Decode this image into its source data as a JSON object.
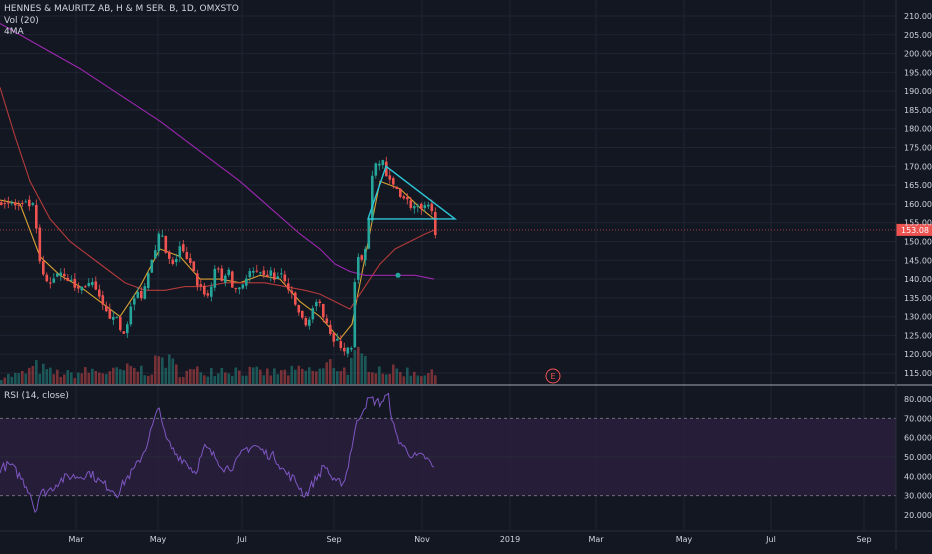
{
  "header": {
    "symbol_line": "HENNES & MAURITZ AB, H & M SER. B, 1D, OMXSTO",
    "vol_label": "Vol (20)",
    "ma_label": "4MA"
  },
  "rsi_label": "RSI (14, close)",
  "price_badge": "153.08",
  "earnings_marker": "E",
  "colors": {
    "background": "#131722",
    "grid": "#1f2433",
    "up": "#26a69a",
    "down": "#ef5350",
    "ma_short": "#d8a234",
    "ma_mid": "#b33a3a",
    "ma_long": "#9c27b0",
    "pattern": "#2ec6d8",
    "rsi_line": "#7e57c2",
    "rsi_band": "#2a1f3d",
    "badge": "#ef5350"
  },
  "chart_data": [
    {
      "type": "candlestick",
      "title": "HENNES & MAURITZ AB, H & M SER. B, 1D, OMXSTO",
      "y_ticks": [
        "115.00",
        "120.00",
        "125.00",
        "130.00",
        "135.00",
        "140.00",
        "145.00",
        "150.00",
        "155.00",
        "160.00",
        "165.00",
        "170.00",
        "175.00",
        "180.00",
        "185.00",
        "190.00",
        "195.00",
        "200.00",
        "205.00",
        "210.00"
      ],
      "ylim": [
        112,
        212
      ],
      "last_price": 153.08,
      "x_ticks": [
        "Mar",
        "May",
        "Jul",
        "Sep",
        "Nov",
        "2019",
        "Mar",
        "May",
        "Jul",
        "Sep"
      ],
      "price_path": [
        [
          0,
          161
        ],
        [
          10,
          160
        ],
        [
          20,
          159
        ],
        [
          30,
          160
        ],
        [
          33,
          158
        ],
        [
          36,
          150
        ],
        [
          40,
          141
        ],
        [
          48,
          138
        ],
        [
          55,
          142
        ],
        [
          62,
          142
        ],
        [
          70,
          139
        ],
        [
          78,
          137
        ],
        [
          85,
          139
        ],
        [
          92,
          138
        ],
        [
          100,
          133
        ],
        [
          106,
          130
        ],
        [
          112,
          131
        ],
        [
          118,
          127
        ],
        [
          122,
          125
        ],
        [
          128,
          131
        ],
        [
          135,
          136
        ],
        [
          142,
          136
        ],
        [
          148,
          144
        ],
        [
          152,
          147
        ],
        [
          156,
          151
        ],
        [
          160,
          152
        ],
        [
          165,
          146
        ],
        [
          172,
          143
        ],
        [
          178,
          149
        ],
        [
          185,
          145
        ],
        [
          190,
          143
        ],
        [
          196,
          139
        ],
        [
          202,
          137
        ],
        [
          208,
          135
        ],
        [
          214,
          144
        ],
        [
          220,
          139
        ],
        [
          226,
          143
        ],
        [
          232,
          137
        ],
        [
          238,
          138
        ],
        [
          244,
          140
        ],
        [
          250,
          142
        ],
        [
          256,
          141
        ],
        [
          262,
          140
        ],
        [
          268,
          142
        ],
        [
          274,
          140
        ],
        [
          280,
          141
        ],
        [
          286,
          138
        ],
        [
          292,
          134
        ],
        [
          298,
          131
        ],
        [
          304,
          127
        ],
        [
          310,
          132
        ],
        [
          316,
          133
        ],
        [
          320,
          132
        ],
        [
          326,
          129
        ],
        [
          332,
          123
        ],
        [
          338,
          123
        ],
        [
          344,
          121
        ],
        [
          350,
          121
        ],
        [
          354,
          141
        ],
        [
          358,
          146
        ],
        [
          362,
          146
        ],
        [
          366,
          149
        ],
        [
          370,
          168
        ],
        [
          376,
          170
        ],
        [
          382,
          172
        ],
        [
          386,
          166
        ],
        [
          390,
          165
        ],
        [
          396,
          164
        ],
        [
          402,
          162
        ],
        [
          408,
          160
        ],
        [
          414,
          159
        ],
        [
          420,
          158
        ],
        [
          426,
          159
        ],
        [
          430,
          158
        ],
        [
          434,
          153
        ]
      ],
      "volume_path": [
        [
          0,
          8
        ],
        [
          20,
          10
        ],
        [
          35,
          18
        ],
        [
          50,
          12
        ],
        [
          70,
          10
        ],
        [
          90,
          14
        ],
        [
          110,
          12
        ],
        [
          130,
          16
        ],
        [
          150,
          14
        ],
        [
          160,
          30
        ],
        [
          180,
          12
        ],
        [
          200,
          14
        ],
        [
          220,
          16
        ],
        [
          240,
          14
        ],
        [
          260,
          12
        ],
        [
          280,
          12
        ],
        [
          300,
          14
        ],
        [
          320,
          14
        ],
        [
          330,
          22
        ],
        [
          345,
          14
        ],
        [
          355,
          28
        ],
        [
          365,
          24
        ],
        [
          375,
          18
        ],
        [
          385,
          14
        ],
        [
          400,
          14
        ],
        [
          420,
          12
        ],
        [
          434,
          10
        ]
      ],
      "ma_series": [
        {
          "color": "#d8a234",
          "path": [
            [
              0,
              161
            ],
            [
              20,
              160
            ],
            [
              40,
              146
            ],
            [
              60,
              141
            ],
            [
              80,
              138
            ],
            [
              100,
              134
            ],
            [
              120,
              130
            ],
            [
              140,
              138
            ],
            [
              160,
              148
            ],
            [
              180,
              146
            ],
            [
              200,
              140
            ],
            [
              220,
              140
            ],
            [
              240,
              139
            ],
            [
              260,
              141
            ],
            [
              280,
              140
            ],
            [
              300,
              134
            ],
            [
              320,
              130
            ],
            [
              340,
              124
            ],
            [
              352,
              128
            ],
            [
              366,
              147
            ],
            [
              380,
              166
            ],
            [
              400,
              164
            ],
            [
              420,
              159
            ],
            [
              434,
              156
            ]
          ]
        },
        {
          "color": "#b33a3a",
          "path": [
            [
              0,
              191
            ],
            [
              15,
              178
            ],
            [
              30,
              166
            ],
            [
              50,
              156
            ],
            [
              70,
              150
            ],
            [
              90,
              146
            ],
            [
              110,
              142
            ],
            [
              125,
              139
            ],
            [
              145,
              137
            ],
            [
              165,
              137
            ],
            [
              185,
              138
            ],
            [
              205,
              138
            ],
            [
              225,
              139
            ],
            [
              245,
              139
            ],
            [
              265,
              139
            ],
            [
              285,
              138
            ],
            [
              305,
              137
            ],
            [
              320,
              136
            ],
            [
              335,
              134
            ],
            [
              350,
              132
            ],
            [
              360,
              136
            ],
            [
              370,
              140
            ],
            [
              380,
              144
            ],
            [
              395,
              148
            ],
            [
              410,
              150
            ],
            [
              425,
              152
            ],
            [
              434,
              153
            ]
          ]
        },
        {
          "color": "#9c27b0",
          "path": [
            [
              0,
              208
            ],
            [
              40,
              202
            ],
            [
              80,
              196
            ],
            [
              120,
              189
            ],
            [
              160,
              182
            ],
            [
              200,
              174
            ],
            [
              240,
              166
            ],
            [
              270,
              159
            ],
            [
              300,
              152
            ],
            [
              320,
              148
            ],
            [
              335,
              144
            ],
            [
              350,
              142
            ],
            [
              365,
              141
            ],
            [
              380,
              141
            ],
            [
              395,
              141
            ],
            [
              415,
              141
            ],
            [
              434,
              140
            ]
          ]
        }
      ],
      "pattern_triangle": [
        [
          368,
          156
        ],
        [
          386,
          170
        ],
        [
          455,
          156
        ]
      ]
    },
    {
      "type": "line",
      "title": "RSI (14, close)",
      "y_ticks": [
        "20.0000",
        "30.0000",
        "40.0000",
        "50.0000",
        "60.0000",
        "70.0000",
        "80.0000"
      ],
      "ylim": [
        16,
        84
      ],
      "bands": [
        30,
        70
      ],
      "x": [
        0,
        10,
        20,
        30,
        35,
        40,
        50,
        60,
        70,
        80,
        90,
        100,
        110,
        118,
        125,
        135,
        145,
        155,
        160,
        165,
        175,
        185,
        195,
        205,
        215,
        225,
        235,
        245,
        255,
        265,
        275,
        285,
        295,
        305,
        315,
        325,
        335,
        345,
        355,
        360,
        365,
        370,
        380,
        388,
        395,
        405,
        415,
        425,
        434
      ],
      "values": [
        44,
        46,
        40,
        32,
        22,
        31,
        33,
        38,
        40,
        40,
        42,
        37,
        34,
        31,
        38,
        44,
        54,
        70,
        76,
        60,
        52,
        48,
        42,
        55,
        50,
        44,
        46,
        54,
        56,
        52,
        50,
        42,
        38,
        30,
        38,
        46,
        36,
        38,
        64,
        72,
        77,
        80,
        78,
        82,
        62,
        54,
        50,
        50,
        44
      ]
    }
  ]
}
